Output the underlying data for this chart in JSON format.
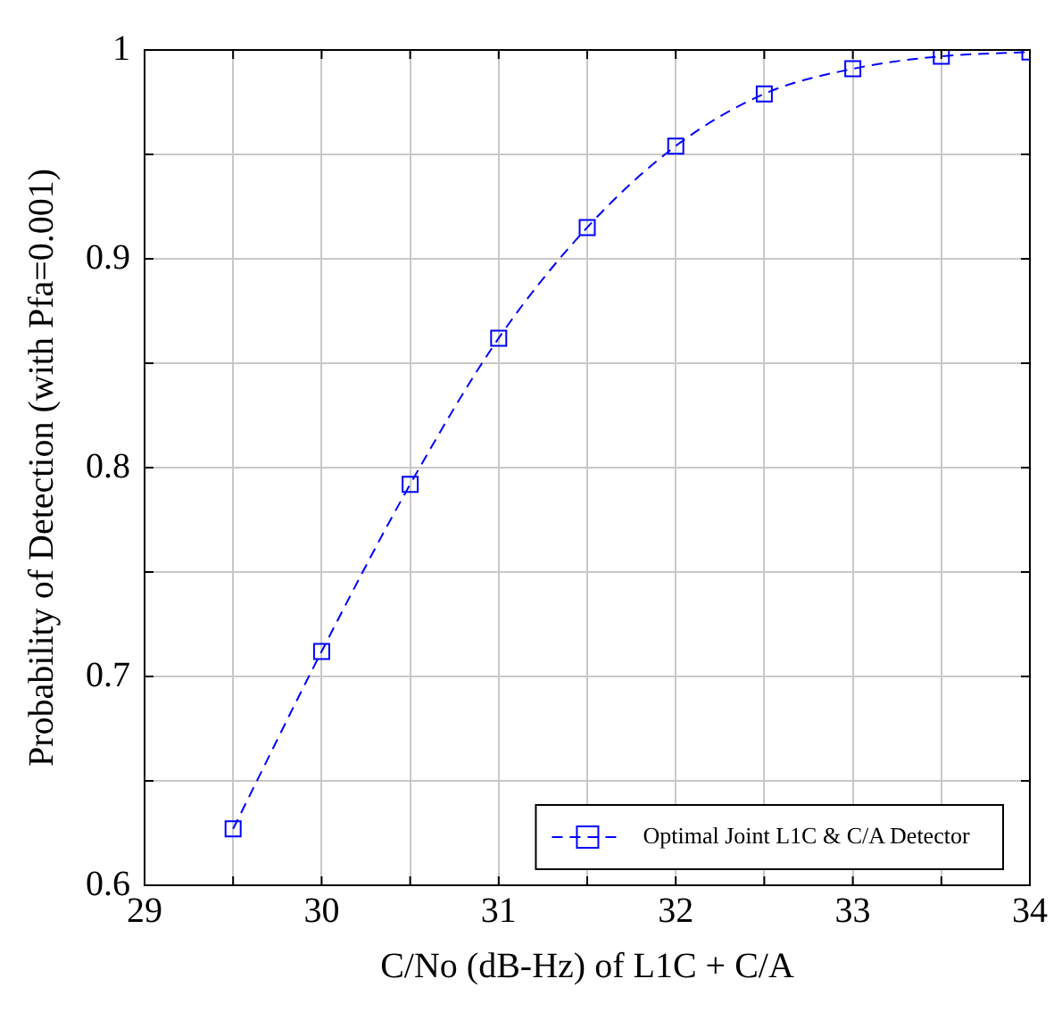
{
  "chart_data": {
    "type": "line",
    "xlabel": "C/No (dB-Hz) of L1C + C/A",
    "ylabel": "Probability of Detection (with Pfa=0.001)",
    "x": [
      29.5,
      30,
      30.5,
      31,
      31.5,
      32,
      32.5,
      33,
      33.5,
      34
    ],
    "series": [
      {
        "name": "Optimal Joint L1C & C/A Detector",
        "color": "#0000ff",
        "values": [
          0.627,
          0.712,
          0.792,
          0.862,
          0.915,
          0.954,
          0.979,
          0.991,
          0.997,
          0.999
        ]
      }
    ],
    "xlim": [
      29,
      34
    ],
    "xticks": [
      29,
      {
        "value": 29.5,
        "label": null
      },
      30,
      {
        "value": 30.5,
        "label": null
      },
      31,
      {
        "value": 31.5,
        "label": null
      },
      32,
      {
        "value": 32.5,
        "label": null
      },
      33,
      {
        "value": 33.5,
        "label": null
      },
      34
    ],
    "ylim": [
      0.6,
      1
    ],
    "yticks": [
      0.6,
      {
        "value": 0.65,
        "label": null
      },
      0.7,
      {
        "value": 0.75,
        "label": null
      },
      0.8,
      {
        "value": 0.85,
        "label": null
      },
      0.9,
      {
        "value": 0.95,
        "label": null
      },
      1
    ],
    "grid": true,
    "legend": "bottom right",
    "marker": "square",
    "line_style": "dashed"
  }
}
